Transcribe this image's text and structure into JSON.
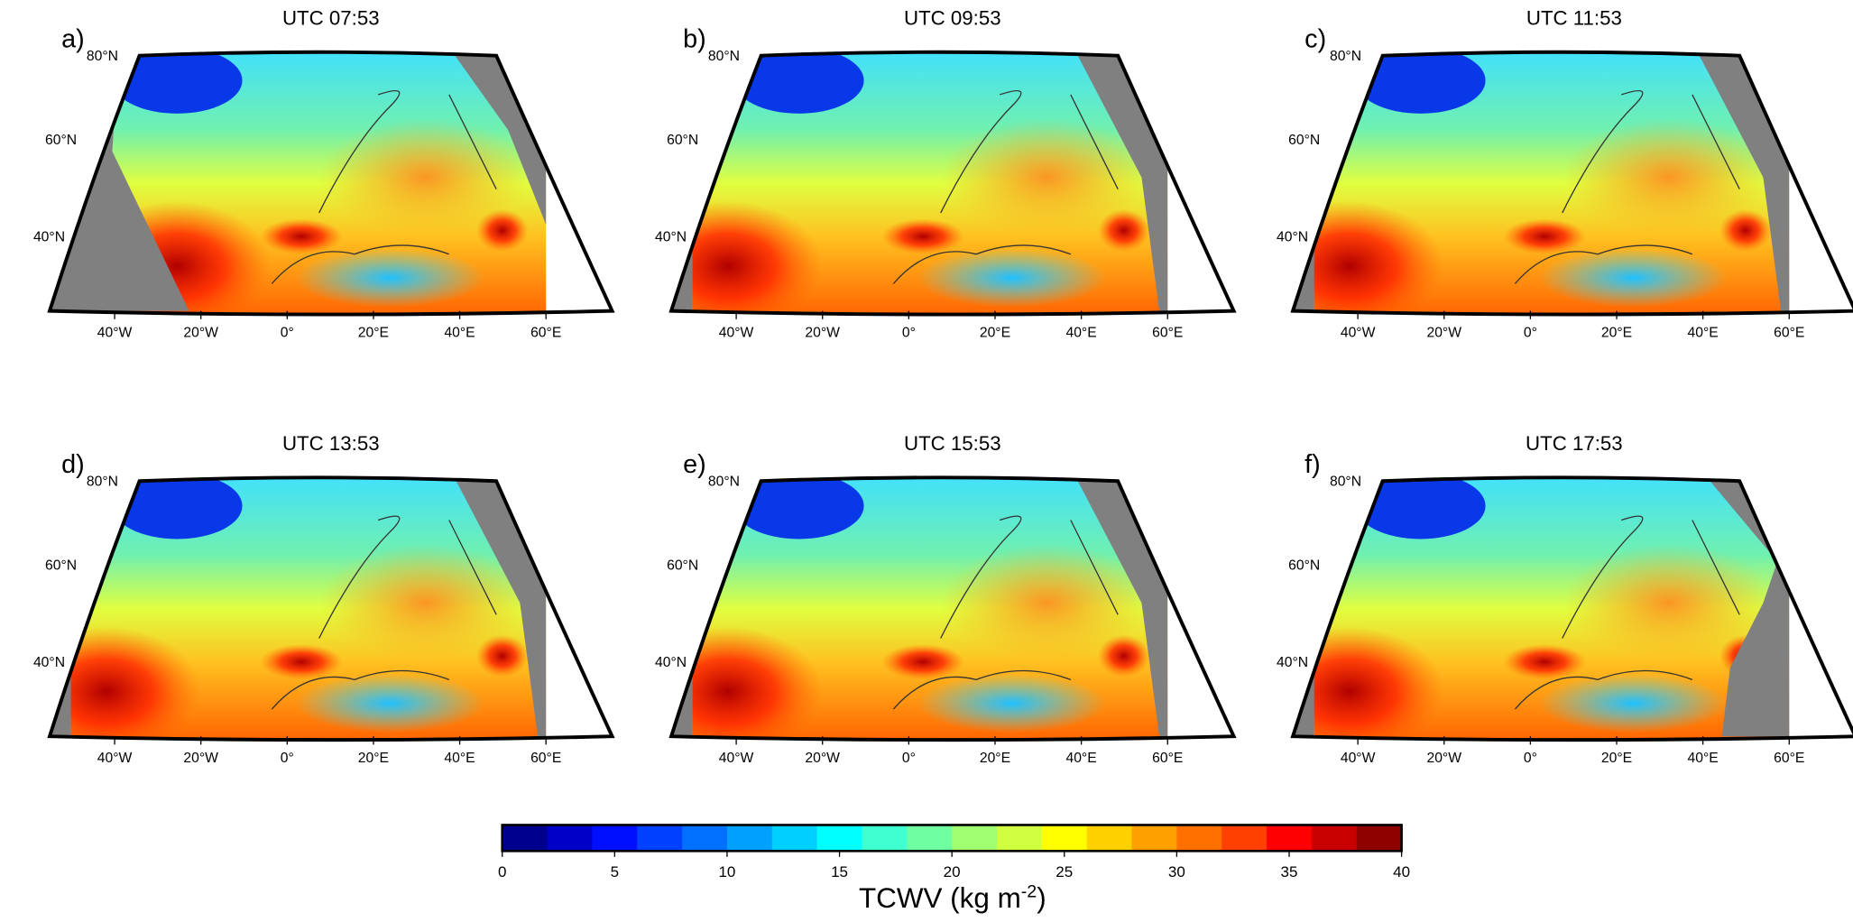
{
  "panels": [
    {
      "letter": "a)",
      "title": "UTC 07:53"
    },
    {
      "letter": "b)",
      "title": "UTC 09:53"
    },
    {
      "letter": "c)",
      "title": "UTC 11:53"
    },
    {
      "letter": "d)",
      "title": "UTC 13:53"
    },
    {
      "letter": "e)",
      "title": "UTC 15:53"
    },
    {
      "letter": "f)",
      "title": "UTC 17:53"
    }
  ],
  "lat_labels": [
    "80°N",
    "60°N",
    "40°N"
  ],
  "lon_labels": [
    "40°W",
    "20°W",
    "0°",
    "20°E",
    "40°E",
    "60°E"
  ],
  "colorbar": {
    "lim": [
      0,
      40
    ],
    "ticks": [
      0,
      5,
      10,
      15,
      20,
      25,
      30,
      35,
      40
    ],
    "colors": [
      "#00008f",
      "#0000c8",
      "#0010ff",
      "#0040ff",
      "#0070ff",
      "#00a0ff",
      "#00d0ff",
      "#00ffff",
      "#40ffd0",
      "#70ffa0",
      "#a0ff70",
      "#d0ff40",
      "#ffff00",
      "#ffd000",
      "#ffa000",
      "#ff7000",
      "#ff4000",
      "#ff0000",
      "#c80000",
      "#8f0000"
    ],
    "label": {
      "text": "TCWV (kg m",
      "superscript": "-2",
      "suffix": ")"
    }
  }
}
